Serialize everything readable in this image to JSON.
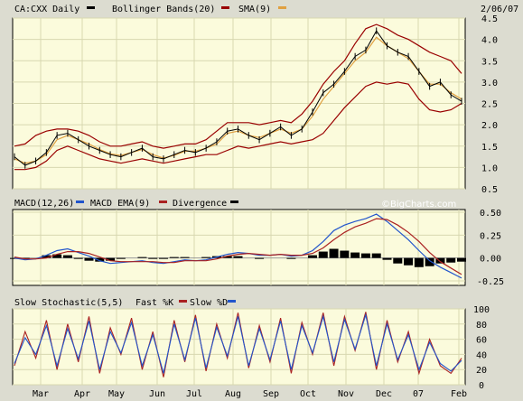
{
  "header": {
    "symbol": "CA:CXX Daily",
    "bb_label": "Bollinger Bands(20)",
    "sma_label": "SMA(9)",
    "date": "2/06/07"
  },
  "macd_header": {
    "macd_label": "MACD(12,26)",
    "ema_label": "MACD EMA(9)",
    "div_label": "Divergence",
    "brand": "©BigCharts.com"
  },
  "stoch_header": {
    "title": "Slow Stochastic(5,5)",
    "fast_label": "Fast %K",
    "slow_label": "Slow %D"
  },
  "colors": {
    "panel_bg": "#fbfbdc",
    "price": "#000000",
    "bollinger": "#990000",
    "sma": "#e0a040",
    "macd": "#2255cc",
    "macd_ema": "#aa2222",
    "divergence": "#000000",
    "fast_k": "#aa2222",
    "slow_d": "#2255cc"
  },
  "chart_data": [
    {
      "type": "line",
      "name": "price",
      "months": [
        "Mar",
        "Apr",
        "May",
        "Jun",
        "Jul",
        "Aug",
        "Sep",
        "Oct",
        "Nov",
        "Dec",
        "07",
        "Feb"
      ],
      "y_ticks": [
        "0.5",
        "1.0",
        "1.5",
        "2.0",
        "2.5",
        "3.0",
        "3.5",
        "4.0",
        "4.5"
      ],
      "ylim": [
        0.5,
        4.5
      ],
      "price": [
        1.25,
        1.05,
        1.15,
        1.35,
        1.75,
        1.8,
        1.65,
        1.5,
        1.4,
        1.3,
        1.25,
        1.35,
        1.45,
        1.25,
        1.2,
        1.3,
        1.4,
        1.35,
        1.45,
        1.6,
        1.85,
        1.9,
        1.75,
        1.65,
        1.8,
        1.95,
        1.75,
        1.9,
        2.3,
        2.75,
        2.95,
        3.25,
        3.6,
        3.75,
        4.2,
        3.85,
        3.7,
        3.6,
        3.25,
        2.9,
        3.0,
        2.7,
        2.55
      ],
      "bb_upper": [
        1.5,
        1.55,
        1.75,
        1.85,
        1.9,
        1.9,
        1.85,
        1.75,
        1.6,
        1.5,
        1.5,
        1.55,
        1.6,
        1.5,
        1.45,
        1.5,
        1.55,
        1.55,
        1.65,
        1.85,
        2.05,
        2.05,
        2.05,
        2.0,
        2.05,
        2.1,
        2.05,
        2.25,
        2.55,
        2.95,
        3.25,
        3.5,
        3.9,
        4.25,
        4.35,
        4.25,
        4.1,
        4.0,
        3.85,
        3.7,
        3.6,
        3.5,
        3.2
      ],
      "bb_lower": [
        0.95,
        0.95,
        1.0,
        1.15,
        1.4,
        1.5,
        1.4,
        1.3,
        1.2,
        1.15,
        1.1,
        1.15,
        1.2,
        1.15,
        1.1,
        1.15,
        1.2,
        1.25,
        1.3,
        1.3,
        1.4,
        1.5,
        1.45,
        1.5,
        1.55,
        1.6,
        1.55,
        1.6,
        1.65,
        1.8,
        2.1,
        2.4,
        2.65,
        2.9,
        3.0,
        2.95,
        3.0,
        2.95,
        2.6,
        2.35,
        2.3,
        2.35,
        2.5
      ],
      "sma": [
        1.2,
        1.1,
        1.15,
        1.3,
        1.65,
        1.75,
        1.65,
        1.55,
        1.42,
        1.32,
        1.28,
        1.35,
        1.42,
        1.3,
        1.22,
        1.28,
        1.38,
        1.38,
        1.45,
        1.55,
        1.8,
        1.85,
        1.75,
        1.7,
        1.8,
        1.9,
        1.8,
        1.9,
        2.2,
        2.6,
        2.9,
        3.2,
        3.5,
        3.7,
        4.05,
        3.85,
        3.7,
        3.55,
        3.25,
        2.95,
        2.95,
        2.75,
        2.6
      ]
    },
    {
      "type": "line",
      "name": "macd",
      "y_ticks": [
        "0.50",
        "0.25",
        "0.00",
        "-0.25"
      ],
      "ylim": [
        -0.3,
        0.53
      ],
      "macd": [
        0,
        -0.02,
        -0.01,
        0.03,
        0.08,
        0.1,
        0.06,
        0.02,
        -0.03,
        -0.06,
        -0.05,
        -0.04,
        -0.03,
        -0.05,
        -0.06,
        -0.04,
        -0.02,
        -0.03,
        -0.02,
        0.01,
        0.04,
        0.06,
        0.05,
        0.03,
        0.03,
        0.04,
        0.02,
        0.03,
        0.08,
        0.18,
        0.3,
        0.36,
        0.4,
        0.43,
        0.48,
        0.4,
        0.3,
        0.2,
        0.08,
        -0.03,
        -0.1,
        -0.16,
        -0.22
      ],
      "ema": [
        0.01,
        -0.01,
        -0.01,
        0.0,
        0.04,
        0.07,
        0.07,
        0.05,
        0.01,
        -0.03,
        -0.04,
        -0.04,
        -0.04,
        -0.04,
        -0.05,
        -0.05,
        -0.03,
        -0.03,
        -0.03,
        -0.01,
        0.02,
        0.04,
        0.05,
        0.04,
        0.03,
        0.04,
        0.03,
        0.03,
        0.05,
        0.11,
        0.2,
        0.28,
        0.34,
        0.38,
        0.43,
        0.42,
        0.36,
        0.28,
        0.18,
        0.06,
        -0.04,
        -0.11,
        -0.18
      ],
      "divergence": [
        -0.01,
        -0.01,
        0.0,
        0.03,
        0.04,
        0.03,
        -0.01,
        -0.03,
        -0.04,
        -0.03,
        -0.01,
        0.0,
        0.01,
        -0.01,
        -0.01,
        0.01,
        0.01,
        0.0,
        0.01,
        0.02,
        0.02,
        0.02,
        0.0,
        -0.01,
        0.0,
        0.0,
        -0.01,
        0.0,
        0.03,
        0.07,
        0.1,
        0.08,
        0.06,
        0.05,
        0.05,
        -0.02,
        -0.06,
        -0.08,
        -0.1,
        -0.09,
        -0.06,
        -0.05,
        -0.04
      ]
    },
    {
      "type": "line",
      "name": "stochastic",
      "y_ticks": [
        "100",
        "80",
        "60",
        "40",
        "20",
        "0"
      ],
      "ylim": [
        0,
        100
      ],
      "fast_k": [
        25,
        70,
        35,
        85,
        20,
        80,
        30,
        90,
        15,
        75,
        40,
        88,
        20,
        70,
        10,
        85,
        30,
        92,
        18,
        80,
        35,
        95,
        22,
        78,
        30,
        88,
        15,
        82,
        40,
        95,
        25,
        90,
        45,
        96,
        20,
        85,
        30,
        70,
        15,
        60,
        25,
        15,
        35
      ],
      "slow_d": [
        28,
        62,
        40,
        78,
        25,
        74,
        34,
        84,
        20,
        70,
        42,
        82,
        25,
        66,
        15,
        80,
        33,
        88,
        22,
        76,
        38,
        90,
        25,
        74,
        33,
        84,
        20,
        78,
        42,
        90,
        30,
        86,
        47,
        92,
        25,
        80,
        33,
        66,
        20,
        56,
        28,
        18,
        32
      ]
    }
  ]
}
